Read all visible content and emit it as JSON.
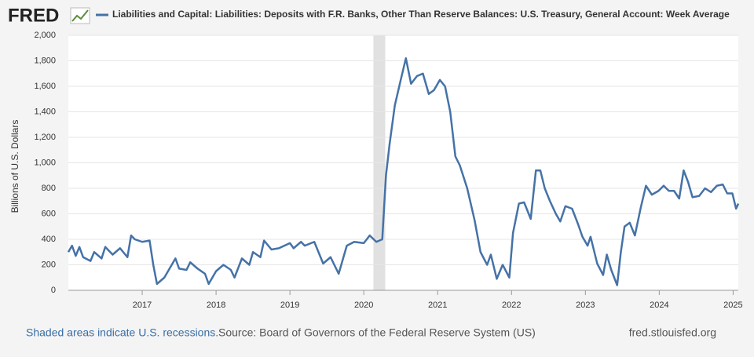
{
  "logo": "FRED",
  "chart_data": {
    "type": "line",
    "y_label": "Billions of U.S. Dollars",
    "x": [
      2016.0,
      2016.05,
      2016.1,
      2016.15,
      2016.2,
      2016.3,
      2016.35,
      2016.45,
      2016.5,
      2016.6,
      2016.7,
      2016.8,
      2016.85,
      2016.9,
      2017.0,
      2017.1,
      2017.15,
      2017.2,
      2017.3,
      2017.45,
      2017.5,
      2017.6,
      2017.65,
      2017.75,
      2017.85,
      2017.9,
      2018.0,
      2018.1,
      2018.2,
      2018.25,
      2018.35,
      2018.45,
      2018.5,
      2018.6,
      2018.65,
      2018.75,
      2018.85,
      2019.0,
      2019.05,
      2019.15,
      2019.2,
      2019.33,
      2019.45,
      2019.55,
      2019.66,
      2019.77,
      2019.87,
      2020.0,
      2020.08,
      2020.17,
      2020.25,
      2020.3,
      2020.35,
      2020.42,
      2020.5,
      2020.57,
      2020.64,
      2020.72,
      2020.8,
      2020.88,
      2020.95,
      2021.03,
      2021.1,
      2021.17,
      2021.24,
      2021.3,
      2021.4,
      2021.5,
      2021.58,
      2021.67,
      2021.72,
      2021.8,
      2021.88,
      2021.97,
      2022.02,
      2022.1,
      2022.17,
      2022.26,
      2022.33,
      2022.39,
      2022.45,
      2022.52,
      2022.6,
      2022.66,
      2022.73,
      2022.82,
      2022.9,
      2022.96,
      2023.03,
      2023.07,
      2023.16,
      2023.24,
      2023.29,
      2023.35,
      2023.43,
      2023.48,
      2023.53,
      2023.6,
      2023.67,
      2023.75,
      2023.82,
      2023.9,
      2023.99,
      2024.06,
      2024.13,
      2024.2,
      2024.27,
      2024.33,
      2024.39,
      2024.45,
      2024.54,
      2024.62,
      2024.7,
      2024.78,
      2024.86,
      2024.92,
      2024.99,
      2025.04,
      2025.07
    ],
    "series": [
      {
        "name": "Liabilities and Capital: Liabilities: Deposits with F.R. Banks, Other Than Reserve Balances: U.S. Treasury, General Account: Week Average",
        "color": "#4572a7",
        "values": [
          300,
          350,
          270,
          340,
          260,
          230,
          300,
          250,
          340,
          280,
          330,
          260,
          430,
          400,
          380,
          390,
          200,
          50,
          100,
          250,
          170,
          160,
          220,
          170,
          130,
          50,
          150,
          200,
          160,
          100,
          250,
          200,
          300,
          260,
          390,
          320,
          330,
          370,
          330,
          380,
          350,
          380,
          210,
          260,
          130,
          350,
          380,
          370,
          430,
          380,
          400,
          900,
          1150,
          1450,
          1650,
          1820,
          1620,
          1680,
          1700,
          1540,
          1570,
          1650,
          1600,
          1400,
          1050,
          980,
          800,
          550,
          300,
          200,
          280,
          90,
          200,
          100,
          450,
          680,
          690,
          560,
          940,
          940,
          800,
          700,
          600,
          540,
          660,
          640,
          520,
          420,
          350,
          420,
          210,
          120,
          280,
          160,
          40,
          300,
          500,
          530,
          430,
          650,
          820,
          750,
          780,
          820,
          780,
          780,
          720,
          940,
          850,
          730,
          740,
          800,
          770,
          820,
          830,
          760,
          760,
          640,
          680
        ]
      }
    ],
    "recessions": [
      {
        "start": 2020.13,
        "end": 2020.29
      }
    ],
    "xlim": [
      2016.0,
      2025.07
    ],
    "xticks": [
      2017,
      2018,
      2019,
      2020,
      2021,
      2022,
      2023,
      2024,
      2025
    ],
    "ylim": [
      0,
      2000
    ],
    "yticks": [
      0,
      200,
      400,
      600,
      800,
      {
        "value": 1000,
        "label": "1,000"
      },
      {
        "value": 1200,
        "label": "1,200"
      },
      {
        "value": 1400,
        "label": "1,400"
      },
      {
        "value": 1600,
        "label": "1,600"
      },
      {
        "value": 1800,
        "label": "1,800"
      },
      {
        "value": 2000,
        "label": "2,000"
      }
    ],
    "grid": true,
    "footer": {
      "recession_note": "Shaded areas indicate U.S. recessions.",
      "source": "Source: Board of Governors of the Federal Reserve System (US)",
      "site": "fred.stlouisfed.org"
    }
  }
}
